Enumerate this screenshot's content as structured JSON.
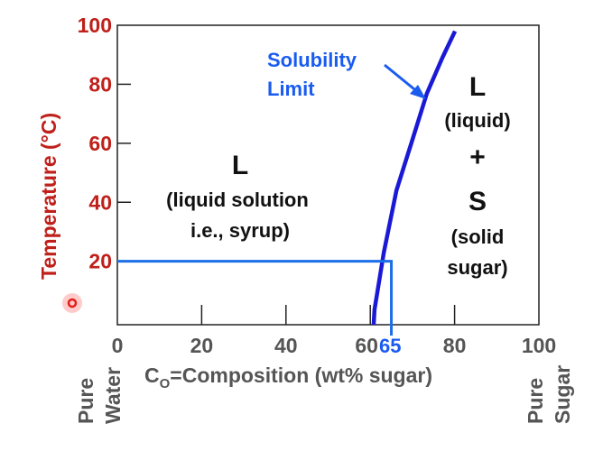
{
  "chart_data": {
    "type": "line",
    "ylabel": "Temperature (°C)",
    "xlabel_main": "C",
    "xlabel_sub": "O",
    "xlabel_rest": "=Composition (wt% sugar)",
    "xlim": [
      0,
      100
    ],
    "ylim": [
      -1.5,
      100
    ],
    "x_ticks": [
      "0",
      "20",
      "40",
      "60",
      "80",
      "100"
    ],
    "y_ticks": [
      "20",
      "40",
      "60",
      "80",
      "100"
    ],
    "x_end_labels": {
      "left": [
        "Pure",
        "Water"
      ],
      "right": [
        "Pure",
        "Sugar"
      ]
    },
    "series": [
      {
        "name": "Solubility Limit",
        "color": "#1a1ad6",
        "x": [
          60.8,
          61,
          63.2,
          66.2,
          69.8,
          73.4,
          77.1,
          80.1
        ],
        "y": [
          -1.5,
          3.6,
          22.9,
          44,
          60.3,
          76.8,
          89,
          98
        ]
      }
    ],
    "guide": {
      "x": 65,
      "y": 20,
      "x_label": "65",
      "color": "#1a6ee8"
    },
    "annotations": {
      "solubility": [
        "Solubility",
        "Limit"
      ],
      "left_region": {
        "title": "L",
        "lines": [
          "(liquid solution",
          "i.e., syrup)"
        ]
      },
      "right_region": {
        "title1": "L",
        "line1": "(liquid)",
        "plus": "+",
        "title2": "S",
        "lines": [
          "(solid",
          "sugar)"
        ]
      }
    },
    "grid": false,
    "legend": "none"
  }
}
